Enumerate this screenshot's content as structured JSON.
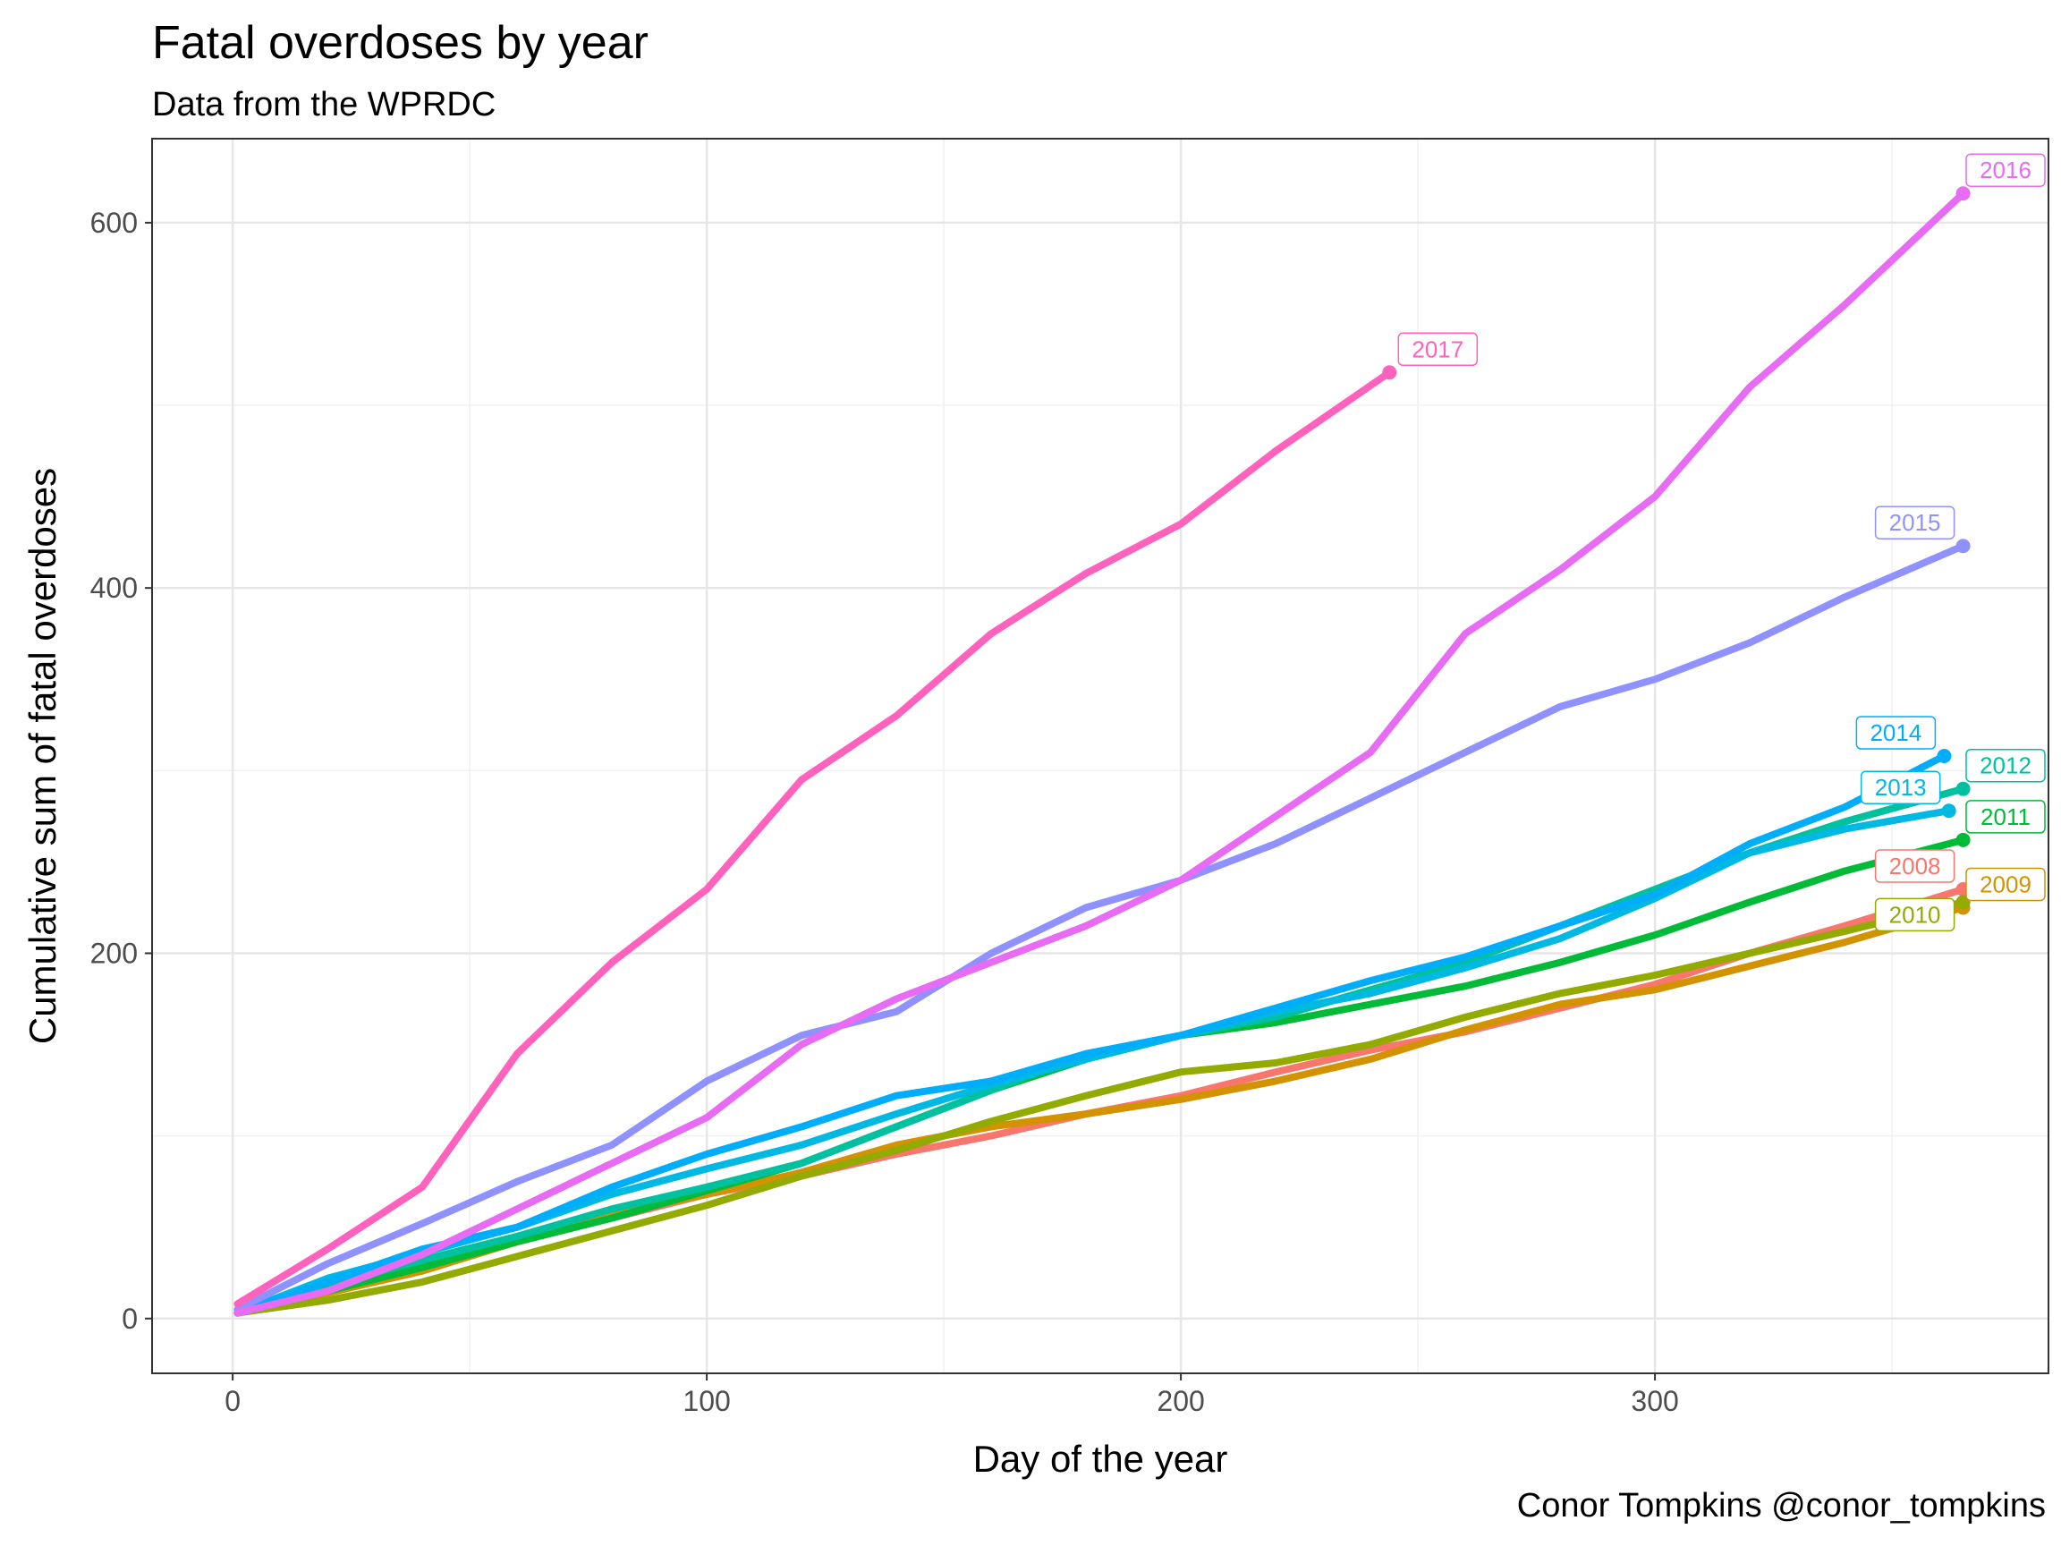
{
  "chart_data": {
    "type": "line",
    "title": "Fatal overdoses by year",
    "subtitle": "Data from the WPRDC",
    "caption": "Conor Tompkins @conor_tompkins",
    "xlabel": "Day of the year",
    "ylabel": "Cumulative sum of fatal overdoses",
    "xlim": [
      -17,
      383
    ],
    "ylim": [
      -30,
      646
    ],
    "x_ticks": [
      0,
      100,
      200,
      300
    ],
    "y_ticks": [
      0,
      200,
      400,
      600
    ],
    "grid": true,
    "legend": "none (direct labels at line ends)",
    "series": [
      {
        "name": "2008",
        "color": "#F8766D",
        "label_side": "left",
        "x": [
          1,
          20,
          40,
          60,
          80,
          100,
          120,
          140,
          160,
          180,
          200,
          220,
          240,
          260,
          280,
          300,
          320,
          340,
          365
        ],
        "y": [
          3,
          15,
          28,
          42,
          55,
          68,
          78,
          90,
          100,
          112,
          122,
          135,
          147,
          157,
          170,
          183,
          200,
          215,
          235
        ]
      },
      {
        "name": "2009",
        "color": "#D39200",
        "label_side": "right",
        "x": [
          1,
          20,
          40,
          60,
          80,
          100,
          120,
          140,
          160,
          180,
          200,
          220,
          240,
          260,
          280,
          300,
          320,
          340,
          365
        ],
        "y": [
          3,
          14,
          26,
          42,
          57,
          68,
          80,
          95,
          105,
          112,
          120,
          130,
          142,
          158,
          172,
          180,
          193,
          206,
          225
        ]
      },
      {
        "name": "2010",
        "color": "#93AA00",
        "label_side": "left",
        "x": [
          1,
          20,
          40,
          60,
          80,
          100,
          120,
          140,
          160,
          180,
          200,
          220,
          240,
          260,
          280,
          300,
          320,
          340,
          365
        ],
        "y": [
          3,
          10,
          20,
          34,
          48,
          62,
          78,
          92,
          108,
          122,
          135,
          140,
          150,
          165,
          178,
          188,
          200,
          212,
          228
        ]
      },
      {
        "name": "2011",
        "color": "#00BA38",
        "label_side": "right",
        "x": [
          1,
          20,
          40,
          60,
          80,
          100,
          120,
          140,
          160,
          180,
          200,
          220,
          240,
          260,
          280,
          300,
          320,
          340,
          365
        ],
        "y": [
          3,
          15,
          28,
          42,
          55,
          70,
          85,
          105,
          125,
          142,
          155,
          162,
          172,
          182,
          195,
          210,
          228,
          245,
          262
        ]
      },
      {
        "name": "2012",
        "color": "#00C19F",
        "label_side": "right",
        "x": [
          1,
          20,
          40,
          60,
          80,
          100,
          120,
          140,
          160,
          180,
          200,
          220,
          240,
          260,
          280,
          300,
          320,
          340,
          365
        ],
        "y": [
          3,
          18,
          32,
          45,
          60,
          72,
          85,
          105,
          125,
          145,
          155,
          165,
          180,
          195,
          215,
          235,
          255,
          272,
          290
        ]
      },
      {
        "name": "2013",
        "color": "#00B9E3",
        "label_side": "left",
        "x": [
          1,
          20,
          40,
          60,
          80,
          100,
          120,
          140,
          160,
          180,
          200,
          220,
          240,
          260,
          280,
          300,
          320,
          340,
          362
        ],
        "y": [
          3,
          22,
          36,
          50,
          68,
          82,
          95,
          112,
          128,
          142,
          155,
          168,
          178,
          192,
          208,
          230,
          255,
          268,
          278
        ]
      },
      {
        "name": "2014",
        "color": "#00ADFA",
        "label_side": "left",
        "x": [
          1,
          20,
          40,
          60,
          80,
          100,
          120,
          140,
          160,
          180,
          200,
          220,
          240,
          260,
          280,
          300,
          320,
          340,
          361
        ],
        "y": [
          3,
          20,
          38,
          50,
          72,
          90,
          105,
          122,
          130,
          145,
          155,
          170,
          185,
          198,
          215,
          232,
          260,
          280,
          308
        ]
      },
      {
        "name": "2015",
        "color": "#8F91FF",
        "label_side": "left",
        "x": [
          1,
          20,
          40,
          60,
          80,
          100,
          120,
          140,
          160,
          180,
          200,
          220,
          240,
          260,
          280,
          300,
          320,
          340,
          365
        ],
        "y": [
          5,
          30,
          52,
          75,
          95,
          130,
          155,
          168,
          200,
          225,
          240,
          260,
          285,
          310,
          335,
          350,
          370,
          395,
          423
        ]
      },
      {
        "name": "2016",
        "color": "#E76BF3",
        "label_side": "right",
        "x": [
          1,
          20,
          40,
          60,
          80,
          100,
          120,
          140,
          160,
          180,
          200,
          220,
          240,
          260,
          280,
          300,
          320,
          340,
          365
        ],
        "y": [
          3,
          15,
          35,
          60,
          85,
          110,
          150,
          175,
          195,
          215,
          240,
          275,
          310,
          375,
          410,
          450,
          510,
          555,
          616
        ]
      },
      {
        "name": "2017",
        "color": "#FF62BC",
        "label_side": "right",
        "x": [
          1,
          20,
          40,
          60,
          80,
          100,
          120,
          140,
          160,
          180,
          200,
          220,
          244
        ],
        "y": [
          8,
          38,
          72,
          145,
          195,
          235,
          295,
          330,
          375,
          408,
          435,
          475,
          518
        ]
      }
    ]
  }
}
